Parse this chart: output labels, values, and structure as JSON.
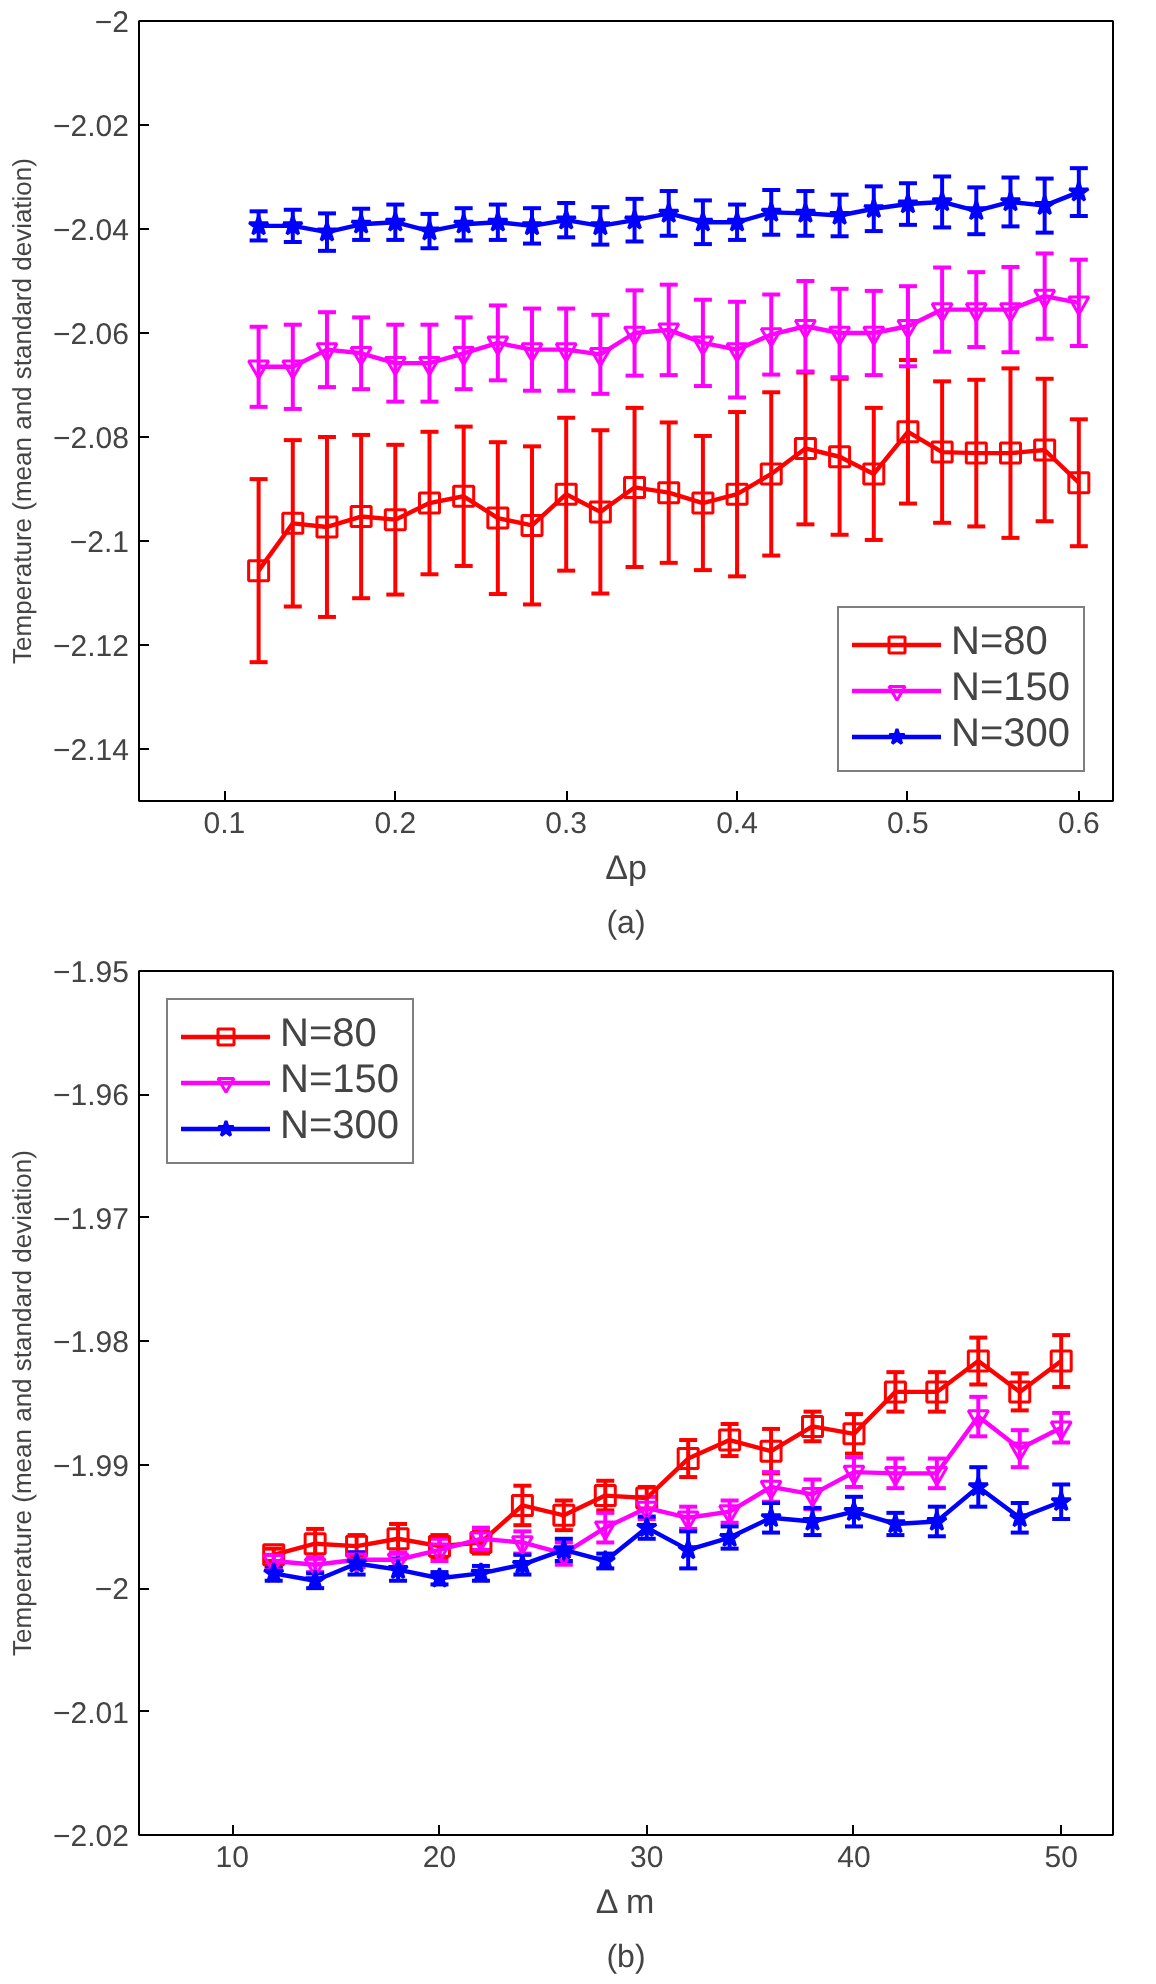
{
  "chart_data": [
    {
      "type": "line",
      "xlabel": "Δp",
      "ylabel": "Temperature (mean and standard deviation)",
      "annotations": [
        "(a)"
      ],
      "x": [
        0.12,
        0.14,
        0.16,
        0.18,
        0.2,
        0.22,
        0.24,
        0.26,
        0.28,
        0.3,
        0.32,
        0.34,
        0.36,
        0.38,
        0.4,
        0.42,
        0.44,
        0.46,
        0.48,
        0.5,
        0.52,
        0.54,
        0.56,
        0.58,
        0.6
      ],
      "xlim": [
        0.05,
        0.62
      ],
      "xticks": [
        0.1,
        0.2,
        0.3,
        0.4,
        0.5,
        0.6
      ],
      "ylim": [
        -2.15,
        -2
      ],
      "yticks": [
        {
          "value": -2.14,
          "label": "−2.14"
        },
        {
          "value": -2.12,
          "label": "−2.12"
        },
        {
          "value": -2.1,
          "label": "−2.1"
        },
        {
          "value": -2.08,
          "label": "−2.08"
        },
        {
          "value": -2.06,
          "label": "−2.06"
        },
        {
          "value": -2.04,
          "label": "−2.04"
        },
        {
          "value": -2.02,
          "label": "−2.02"
        },
        {
          "value": -2,
          "label": "−2"
        }
      ],
      "grid": false,
      "legend": "bottom right",
      "line_style": "solid",
      "series": [
        {
          "name": "N=80",
          "color": "#ff0000",
          "marker": "square",
          "values": [
            -2.1057,
            -2.0966,
            -2.0973,
            -2.0953,
            -2.0959,
            -2.0927,
            -2.0914,
            -2.0956,
            -2.097,
            -2.091,
            -2.0944,
            -2.0897,
            -2.0907,
            -2.0927,
            -2.091,
            -2.0871,
            -2.0822,
            -2.0838,
            -2.0871,
            -2.079,
            -2.0829,
            -2.0831,
            -2.0831,
            -2.0825,
            -2.0888
          ],
          "errors": [
            0.0176,
            0.016,
            0.0173,
            0.0157,
            0.0144,
            0.0137,
            0.0134,
            0.0146,
            0.0152,
            0.0147,
            0.0157,
            0.0153,
            0.0135,
            0.0129,
            0.0158,
            0.0157,
            0.0146,
            0.015,
            0.0127,
            0.0138,
            0.0136,
            0.0141,
            0.0163,
            0.0137,
            0.0122
          ]
        },
        {
          "name": "N=150",
          "color": "#ff00ff",
          "marker": "triangle",
          "values": [
            -2.0665,
            -2.0665,
            -2.0632,
            -2.0639,
            -2.0658,
            -2.0658,
            -2.0639,
            -2.0619,
            -2.0632,
            -2.0632,
            -2.0641,
            -2.06,
            -2.0594,
            -2.0619,
            -2.0632,
            -2.0603,
            -2.0587,
            -2.06,
            -2.06,
            -2.0587,
            -2.0555,
            -2.0555,
            -2.0555,
            -2.0529,
            -2.0542
          ],
          "errors": [
            0.0077,
            0.0081,
            0.0072,
            0.0069,
            0.0074,
            0.0074,
            0.0069,
            0.0072,
            0.0079,
            0.0079,
            0.0076,
            0.0082,
            0.0087,
            0.0083,
            0.0092,
            0.0077,
            0.0087,
            0.0085,
            0.0081,
            0.0077,
            0.0081,
            0.0072,
            0.0082,
            0.0082,
            0.0083
          ]
        },
        {
          "name": "N=300",
          "color": "#0000ff",
          "marker": "star",
          "values": [
            -2.0394,
            -2.0394,
            -2.0406,
            -2.0391,
            -2.0387,
            -2.0404,
            -2.0391,
            -2.0387,
            -2.0394,
            -2.0383,
            -2.0394,
            -2.0383,
            -2.037,
            -2.0387,
            -2.0387,
            -2.0368,
            -2.037,
            -2.0374,
            -2.0361,
            -2.0352,
            -2.0348,
            -2.0365,
            -2.0348,
            -2.0355,
            -2.0329
          ],
          "errors": [
            0.0028,
            0.0031,
            0.0036,
            0.003,
            0.0034,
            0.0033,
            0.0031,
            0.0034,
            0.0034,
            0.0033,
            0.0036,
            0.0041,
            0.0043,
            0.0042,
            0.0034,
            0.0043,
            0.0043,
            0.004,
            0.0043,
            0.004,
            0.0049,
            0.0045,
            0.0047,
            0.0052,
            0.0046
          ]
        }
      ]
    },
    {
      "type": "line",
      "xlabel": "Δ m",
      "ylabel": "Temperature (mean and standard deviation)",
      "annotations": [
        "(b)"
      ],
      "x": [
        12,
        14,
        16,
        18,
        20,
        22,
        24,
        26,
        28,
        30,
        32,
        34,
        36,
        38,
        40,
        42,
        44,
        46,
        48,
        50
      ],
      "xlim": [
        5.5,
        52.5
      ],
      "xticks": [
        10,
        20,
        30,
        40,
        50
      ],
      "ylim": [
        -2.02,
        -1.95
      ],
      "yticks": [
        {
          "value": -2.02,
          "label": "−2.02"
        },
        {
          "value": -2.01,
          "label": "−2.01"
        },
        {
          "value": -2,
          "label": "−2"
        },
        {
          "value": -1.99,
          "label": "−1.99"
        },
        {
          "value": -1.98,
          "label": "−1.98"
        },
        {
          "value": -1.97,
          "label": "−1.97"
        },
        {
          "value": -1.96,
          "label": "−1.96"
        },
        {
          "value": -1.95,
          "label": "−1.95"
        }
      ],
      "grid": false,
      "legend": "top left",
      "line_style": "solid",
      "series": [
        {
          "name": "N=80",
          "color": "#ff0000",
          "marker": "square",
          "values": [
            -1.9973,
            -1.9964,
            -1.9966,
            -1.996,
            -1.9966,
            -1.9963,
            -1.9933,
            -1.9941,
            -1.9925,
            -1.9927,
            -1.9895,
            -1.988,
            -1.9889,
            -1.9869,
            -1.9875,
            -1.9841,
            -1.9841,
            -1.9816,
            -1.9841,
            -1.9816
          ],
          "errors": [
            0.0005,
            0.0012,
            0.0009,
            0.0012,
            0.0009,
            0.0009,
            0.0016,
            0.0012,
            0.0012,
            0.0009,
            0.0015,
            0.0013,
            0.0018,
            0.0012,
            0.0016,
            0.0016,
            0.0016,
            0.0019,
            0.0015,
            0.0021
          ]
        },
        {
          "name": "N=150",
          "color": "#ff00ff",
          "marker": "triangle",
          "values": [
            -1.9978,
            -1.9981,
            -1.9977,
            -1.9977,
            -1.9969,
            -1.996,
            -1.9963,
            -1.9972,
            -1.9951,
            -1.9935,
            -1.9943,
            -1.9938,
            -1.9918,
            -1.9924,
            -1.9906,
            -1.9907,
            -1.9907,
            -1.9861,
            -1.9887,
            -1.987
          ],
          "errors": [
            0.0005,
            0.0006,
            0.0006,
            0.0006,
            0.0009,
            0.0009,
            0.0009,
            0.0009,
            0.0012,
            0.0009,
            0.0009,
            0.0009,
            0.0012,
            0.0012,
            0.0012,
            0.0012,
            0.0012,
            0.0016,
            0.0015,
            0.0012
          ]
        },
        {
          "name": "N=300",
          "color": "#0000ff",
          "marker": "star",
          "values": [
            -1.9988,
            -1.9994,
            -1.998,
            -1.9985,
            -1.9992,
            -1.9988,
            -1.9981,
            -1.9969,
            -1.9978,
            -1.9951,
            -1.9969,
            -1.9959,
            -1.9943,
            -1.9946,
            -1.9938,
            -1.9948,
            -1.9946,
            -1.9918,
            -1.9943,
            -1.993
          ],
          "errors": [
            0.0006,
            0.0006,
            0.0009,
            0.0009,
            0.0005,
            0.0006,
            0.0008,
            0.0009,
            0.0006,
            0.0009,
            0.0015,
            0.0009,
            0.0012,
            0.0011,
            0.0012,
            0.0009,
            0.0012,
            0.0016,
            0.0012,
            0.0014
          ]
        }
      ]
    }
  ]
}
